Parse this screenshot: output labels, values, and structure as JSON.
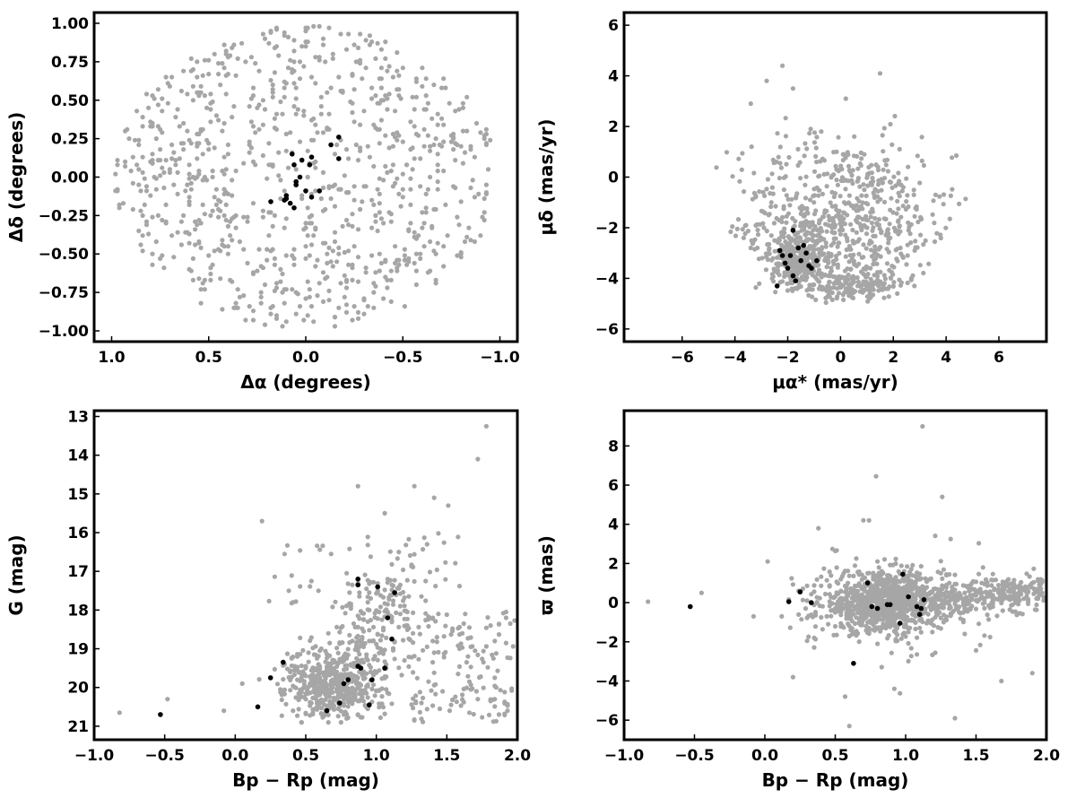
{
  "colors": {
    "field_stars": "#a6a6a6",
    "members": "#000000",
    "frame": "#000000"
  },
  "chart_data": [
    {
      "id": "sky",
      "type": "scatter",
      "xlabel": "Δα (degrees)",
      "ylabel": "Δδ (degrees)",
      "xlim": [
        1.09,
        -1.09
      ],
      "ylim": [
        -1.07,
        1.07
      ],
      "x_inverted": true,
      "xticks": [
        1.0,
        0.5,
        0.0,
        -0.5,
        -1.0
      ],
      "xtick_labels": [
        "1.0",
        "0.5",
        "0.0",
        "−0.5",
        "−1.0"
      ],
      "yticks": [
        -1.0,
        -0.75,
        -0.5,
        -0.25,
        0.0,
        0.25,
        0.5,
        0.75,
        1.0
      ],
      "ytick_labels": [
        "−1.00",
        "−0.75",
        "−0.50",
        "−0.25",
        "0.00",
        "0.25",
        "0.50",
        "0.75",
        "1.00"
      ],
      "grid": false,
      "series": [
        {
          "color": "#a6a6a6",
          "marker_size": 2.6,
          "points": []
        },
        {
          "color": "#000000",
          "marker_size": 2.8,
          "points": [
            [
              0.07,
              0.15
            ],
            [
              0.02,
              0.11
            ],
            [
              0.06,
              0.08
            ],
            [
              -0.03,
              0.13
            ],
            [
              -0.13,
              0.21
            ],
            [
              -0.17,
              0.26
            ],
            [
              -0.17,
              0.12
            ],
            [
              -0.02,
              0.08
            ],
            [
              0.03,
              0.0
            ],
            [
              0.05,
              -0.03
            ],
            [
              0.1,
              -0.12
            ],
            [
              0.11,
              -0.15
            ],
            [
              0.08,
              -0.17
            ],
            [
              0.18,
              -0.16
            ],
            [
              0.06,
              -0.2
            ],
            [
              0.0,
              -0.09
            ],
            [
              -0.03,
              -0.13
            ],
            [
              -0.07,
              -0.09
            ],
            [
              0.1,
              -0.14
            ],
            [
              0.05,
              -0.05
            ]
          ]
        }
      ]
    },
    {
      "id": "proper-motion",
      "type": "scatter",
      "xlabel": "μα* (mas/yr)",
      "ylabel": "μδ (mas/yr)",
      "xlim": [
        -8.2,
        7.8
      ],
      "ylim": [
        -6.5,
        6.5
      ],
      "xticks": [
        -6,
        -4,
        -2,
        0,
        2,
        4,
        6
      ],
      "xtick_labels": [
        "−6",
        "−4",
        "−2",
        "0",
        "2",
        "4",
        "6"
      ],
      "yticks": [
        -6,
        -4,
        -2,
        0,
        2,
        4,
        6
      ],
      "ytick_labels": [
        "−6",
        "−4",
        "−2",
        "0",
        "2",
        "4",
        "6"
      ],
      "grid": false,
      "series": [
        {
          "color": "#a6a6a6",
          "marker_size": 2.6,
          "points": []
        },
        {
          "color": "#000000",
          "marker_size": 2.8,
          "points": [
            [
              -1.8,
              -2.1
            ],
            [
              -2.3,
              -2.9
            ],
            [
              -1.9,
              -3.1
            ],
            [
              -1.6,
              -2.8
            ],
            [
              -1.3,
              -3.0
            ],
            [
              -2.1,
              -3.4
            ],
            [
              -1.5,
              -3.3
            ],
            [
              -1.2,
              -3.5
            ],
            [
              -0.9,
              -3.3
            ],
            [
              -2.0,
              -3.6
            ],
            [
              -1.8,
              -3.9
            ],
            [
              -2.4,
              -4.3
            ],
            [
              -1.1,
              -3.6
            ],
            [
              -2.2,
              -3.1
            ],
            [
              -1.4,
              -2.7
            ],
            [
              -1.7,
              -4.1
            ]
          ]
        }
      ]
    },
    {
      "id": "cmd",
      "type": "scatter",
      "xlabel": "Bp − Rp (mag)",
      "ylabel": "G (mag)",
      "xlim": [
        -1.0,
        2.0
      ],
      "ylim": [
        21.35,
        12.85
      ],
      "y_inverted": true,
      "xticks": [
        -1.0,
        -0.5,
        0.0,
        0.5,
        1.0,
        1.5,
        2.0
      ],
      "xtick_labels": [
        "−1.0",
        "−0.5",
        "0.0",
        "0.5",
        "1.0",
        "1.5",
        "2.0"
      ],
      "yticks": [
        13,
        14,
        15,
        16,
        17,
        18,
        19,
        20,
        21
      ],
      "ytick_labels": [
        "13",
        "14",
        "15",
        "16",
        "17",
        "18",
        "19",
        "20",
        "21"
      ],
      "grid": false,
      "series": [
        {
          "color": "#a6a6a6",
          "marker_size": 2.6,
          "points": []
        },
        {
          "color": "#000000",
          "marker_size": 2.8,
          "points": [
            [
              -0.53,
              20.7
            ],
            [
              0.16,
              20.5
            ],
            [
              0.25,
              19.75
            ],
            [
              0.34,
              19.35
            ],
            [
              0.65,
              20.6
            ],
            [
              0.74,
              20.4
            ],
            [
              0.77,
              19.9
            ],
            [
              0.8,
              19.8
            ],
            [
              0.87,
              19.45
            ],
            [
              0.89,
              19.5
            ],
            [
              0.95,
              20.45
            ],
            [
              0.97,
              19.8
            ],
            [
              1.06,
              19.5
            ],
            [
              1.11,
              18.75
            ],
            [
              1.08,
              18.2
            ],
            [
              1.13,
              17.55
            ],
            [
              1.01,
              17.4
            ],
            [
              0.87,
              17.35
            ],
            [
              0.87,
              17.2
            ]
          ]
        }
      ]
    },
    {
      "id": "parallax",
      "type": "scatter",
      "xlabel": "Bp − Rp (mag)",
      "ylabel": "ϖ (mas)",
      "xlim": [
        -1.0,
        2.0
      ],
      "ylim": [
        -7.0,
        9.8
      ],
      "xticks": [
        -1.0,
        -0.5,
        0.0,
        0.5,
        1.0,
        1.5,
        2.0
      ],
      "xtick_labels": [
        "−1.0",
        "−0.5",
        "0.0",
        "0.5",
        "1.0",
        "1.5",
        "2.0"
      ],
      "yticks": [
        -6,
        -4,
        -2,
        0,
        2,
        4,
        6,
        8
      ],
      "ytick_labels": [
        "−6",
        "−4",
        "−2",
        "0",
        "2",
        "4",
        "6",
        "8"
      ],
      "grid": false,
      "series": [
        {
          "color": "#a6a6a6",
          "marker_size": 2.6,
          "points": []
        },
        {
          "color": "#000000",
          "marker_size": 2.8,
          "points": [
            [
              -0.53,
              -0.2
            ],
            [
              0.17,
              0.05
            ],
            [
              0.25,
              0.55
            ],
            [
              0.33,
              0.0
            ],
            [
              0.63,
              -3.1
            ],
            [
              0.73,
              1.0
            ],
            [
              0.76,
              -0.2
            ],
            [
              0.8,
              -0.3
            ],
            [
              0.87,
              -0.1
            ],
            [
              0.89,
              -0.1
            ],
            [
              0.96,
              -1.05
            ],
            [
              0.98,
              1.45
            ],
            [
              1.02,
              0.3
            ],
            [
              1.08,
              -0.2
            ],
            [
              1.11,
              -0.3
            ],
            [
              1.13,
              0.15
            ],
            [
              1.1,
              -0.6
            ]
          ]
        }
      ]
    }
  ]
}
